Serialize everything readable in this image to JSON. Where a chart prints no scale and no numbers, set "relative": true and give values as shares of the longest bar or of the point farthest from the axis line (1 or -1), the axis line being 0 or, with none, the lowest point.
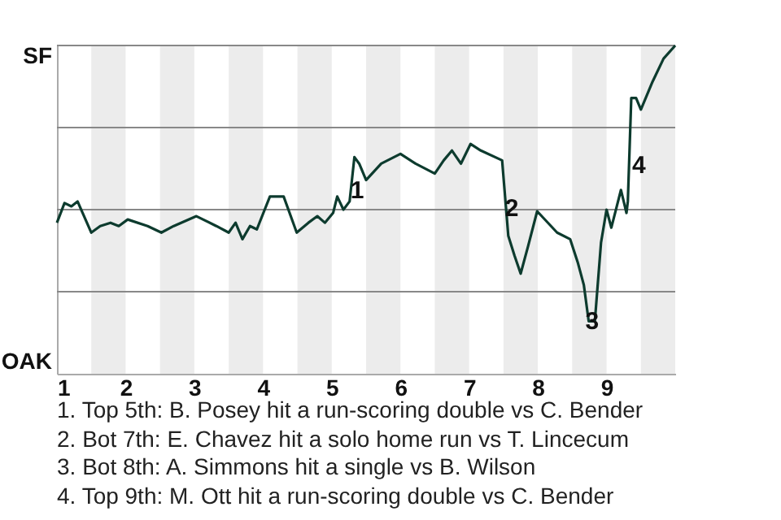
{
  "chart_data": {
    "type": "line",
    "relative": true,
    "x": [
      1,
      1.11,
      1.21,
      1.3,
      1.5,
      1.63,
      1.78,
      1.9,
      2.03,
      2.32,
      2.52,
      2.7,
      3.03,
      3.32,
      3.5,
      3.6,
      3.7,
      3.81,
      3.91,
      4.1,
      4.3,
      4.49,
      4.66,
      4.79,
      4.9,
      5.02,
      5.08,
      5.17,
      5.26,
      5.33,
      5.4,
      5.5,
      5.72,
      6,
      6.22,
      6.5,
      6.63,
      6.75,
      6.88,
      7.02,
      7.17,
      7.48,
      7.57,
      7.66,
      7.75,
      7.86,
      7.99,
      8.28,
      8.47,
      8.58,
      8.67,
      8.74,
      8.83,
      8.92,
      9,
      9.07,
      9.21,
      9.29,
      9.31,
      9.36,
      9.43,
      9.5,
      9.67,
      9.83,
      10
    ],
    "series": [
      {
        "color": "#0d3b2e",
        "values": [
          0.46,
          0.52,
          0.51,
          0.525,
          0.43,
          0.45,
          0.46,
          0.45,
          0.47,
          0.45,
          0.43,
          0.45,
          0.48,
          0.45,
          0.43,
          0.46,
          0.41,
          0.45,
          0.44,
          0.54,
          0.54,
          0.43,
          0.46,
          0.48,
          0.46,
          0.49,
          0.54,
          0.5,
          0.525,
          0.66,
          0.64,
          0.59,
          0.64,
          0.67,
          0.64,
          0.61,
          0.65,
          0.68,
          0.64,
          0.7,
          0.68,
          0.65,
          0.42,
          0.36,
          0.305,
          0.39,
          0.495,
          0.43,
          0.41,
          0.34,
          0.27,
          0.16,
          0.16,
          0.4,
          0.5,
          0.445,
          0.56,
          0.49,
          0.525,
          0.84,
          0.84,
          0.805,
          0.89,
          0.96,
          1
        ]
      }
    ],
    "xlim": [
      1,
      10
    ],
    "xticks": [
      1,
      2,
      3,
      4,
      5,
      6,
      7,
      8,
      9
    ],
    "bands": [
      {
        "axis": "x",
        "from": 1.5,
        "to": 2,
        "color": "#ececec"
      },
      {
        "axis": "x",
        "from": 2.5,
        "to": 3,
        "color": "#ececec"
      },
      {
        "axis": "x",
        "from": 3.5,
        "to": 4,
        "color": "#ececec"
      },
      {
        "axis": "x",
        "from": 4.5,
        "to": 5,
        "color": "#ececec"
      },
      {
        "axis": "x",
        "from": 5.5,
        "to": 6,
        "color": "#ececec"
      },
      {
        "axis": "x",
        "from": 6.5,
        "to": 7,
        "color": "#ececec"
      },
      {
        "axis": "x",
        "from": 7.5,
        "to": 8,
        "color": "#ececec"
      },
      {
        "axis": "x",
        "from": 8.5,
        "to": 9,
        "color": "#ececec"
      },
      {
        "axis": "x",
        "from": 9.5,
        "to": 10,
        "color": "#ececec"
      }
    ],
    "ref_lines": [
      {
        "axis": "y",
        "value": 0.25,
        "color": "#888888"
      },
      {
        "axis": "y",
        "value": 0.5,
        "color": "#888888"
      },
      {
        "axis": "y",
        "value": 0.75,
        "color": "#888888"
      },
      {
        "axis": "y",
        "value": 1,
        "color": "#888888"
      }
    ],
    "annotations": [
      "SF",
      "OAK",
      {
        "text": "1",
        "x": 5.37,
        "y": 0.56
      },
      {
        "text": "2",
        "x": 7.62,
        "y": 0.505
      },
      {
        "text": "3",
        "x": 8.79,
        "y": 0.16
      },
      {
        "text": "4",
        "x": 9.47,
        "y": 0.635
      },
      "1. Top 5th: B. Posey hit a run-scoring double vs C. Bender",
      "2. Bot 7th: E. Chavez hit a solo home run vs T. Lincecum",
      "3. Bot 8th: A. Simmons hit a single vs B. Wilson",
      "4. Top 9th: M. Ott hit a run-scoring double vs C. Bender"
    ]
  }
}
